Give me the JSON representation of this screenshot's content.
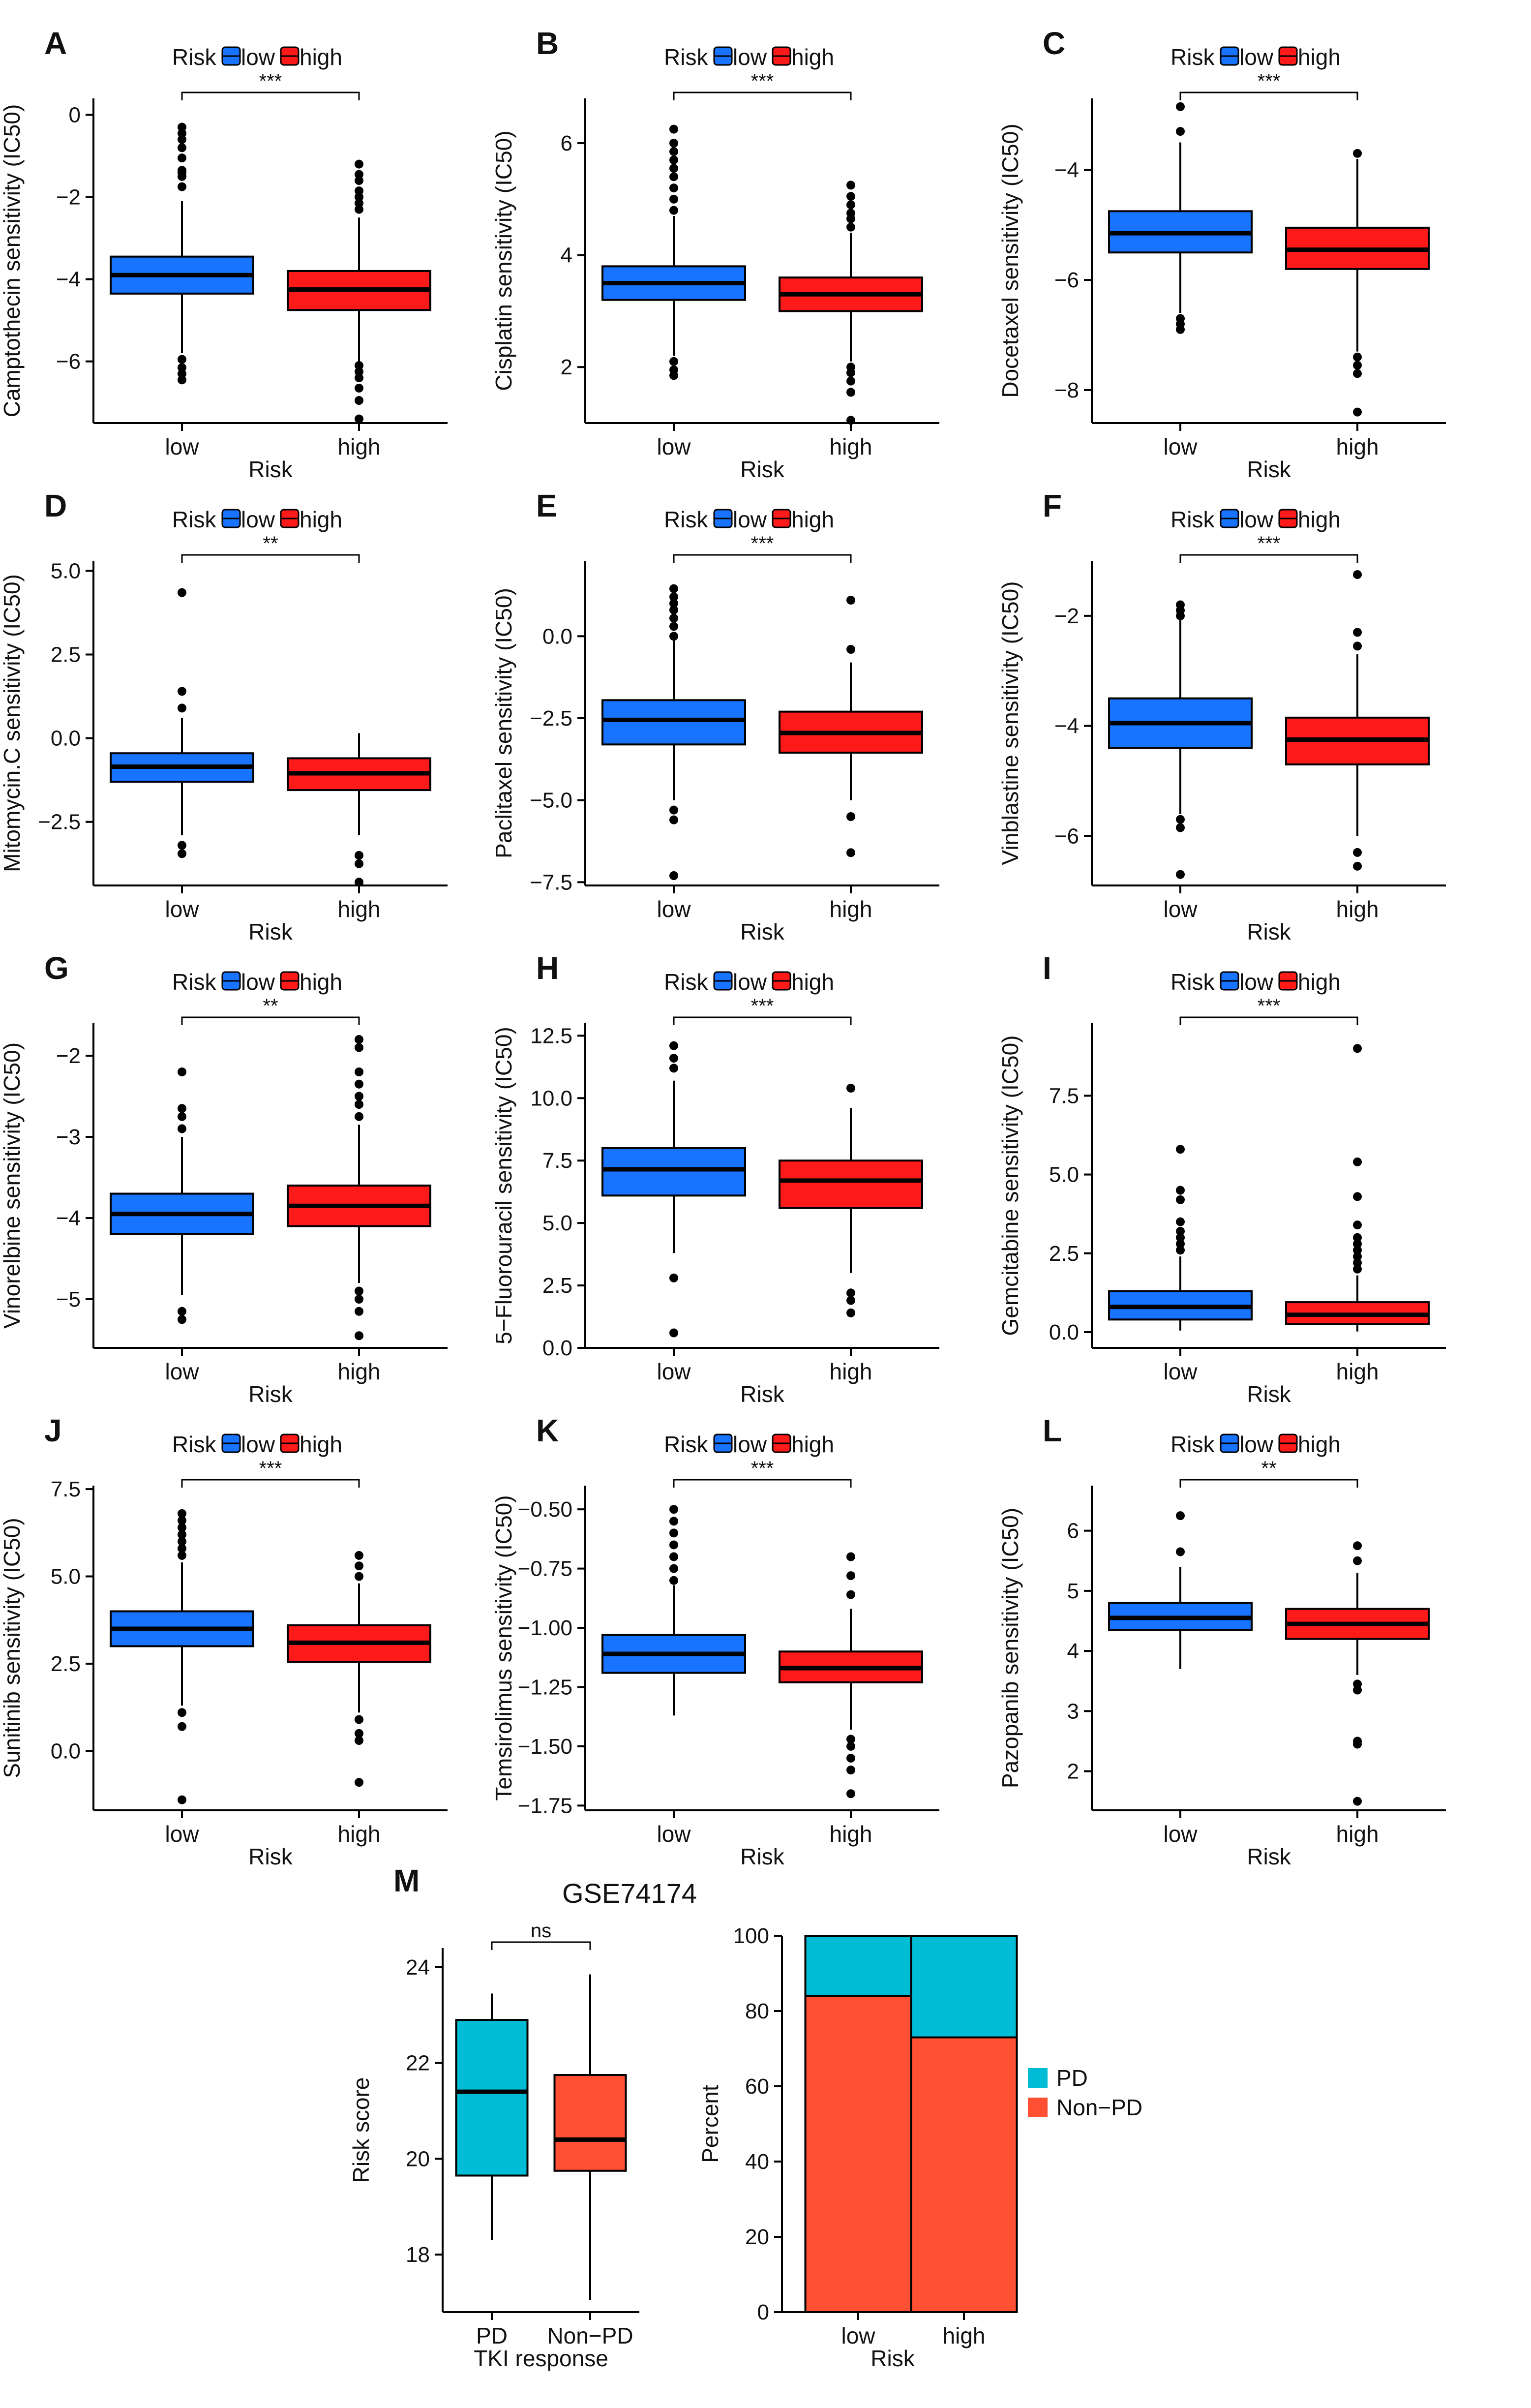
{
  "figure": {
    "gse_title": "GSE74174"
  },
  "colors": {
    "low": "#1874ff",
    "high": "#ff1a1a",
    "pd": "#00bcd4",
    "nonpd": "#ff5033",
    "axis": "#000000"
  },
  "chart_data": [
    {
      "panel": "A",
      "type": "boxplot",
      "ylabel": "Camptothecin sensitivity (IC50)",
      "xlabel": "Risk",
      "legend_title": "Risk",
      "legend_labels": [
        "low",
        "high"
      ],
      "categories": [
        "low",
        "high"
      ],
      "significance": "***",
      "ylim": [
        -7.5,
        0.4
      ],
      "yticks": [
        0,
        -2,
        -4,
        -6
      ],
      "ytick_labels": [
        "0",
        "−2",
        "−4",
        "−6"
      ],
      "boxes": [
        {
          "group": "low",
          "whisker_low": -5.8,
          "q1": -4.35,
          "median": -3.9,
          "q3": -3.45,
          "whisker_high": -2.1,
          "outliers": [
            -0.3,
            -0.45,
            -0.6,
            -0.8,
            -1.05,
            -1.35,
            -1.4,
            -1.5,
            -1.75,
            -5.95,
            -6.15,
            -6.3,
            -6.45
          ]
        },
        {
          "group": "high",
          "whisker_low": -6.0,
          "q1": -4.75,
          "median": -4.25,
          "q3": -3.8,
          "whisker_high": -2.5,
          "outliers": [
            -1.2,
            -1.45,
            -1.6,
            -1.85,
            -2.0,
            -2.15,
            -2.3,
            -6.1,
            -6.25,
            -6.4,
            -6.65,
            -6.95,
            -7.4
          ]
        }
      ]
    },
    {
      "panel": "B",
      "type": "boxplot",
      "ylabel": "Cisplatin sensitivity (IC50)",
      "xlabel": "Risk",
      "legend_title": "Risk",
      "legend_labels": [
        "low",
        "high"
      ],
      "categories": [
        "low",
        "high"
      ],
      "significance": "***",
      "ylim": [
        1.0,
        6.8
      ],
      "yticks": [
        2,
        4,
        6
      ],
      "ytick_labels": [
        "2",
        "4",
        "6"
      ],
      "boxes": [
        {
          "group": "low",
          "whisker_low": 2.2,
          "q1": 3.2,
          "median": 3.5,
          "q3": 3.8,
          "whisker_high": 4.7,
          "outliers": [
            4.8,
            5.0,
            5.2,
            5.4,
            5.55,
            5.7,
            5.85,
            6.0,
            6.25,
            2.1,
            1.95,
            1.85
          ]
        },
        {
          "group": "high",
          "whisker_low": 2.1,
          "q1": 3.0,
          "median": 3.3,
          "q3": 3.6,
          "whisker_high": 4.4,
          "outliers": [
            4.5,
            4.65,
            4.75,
            4.9,
            5.05,
            5.25,
            2.0,
            1.9,
            1.75,
            1.55,
            1.05
          ]
        }
      ]
    },
    {
      "panel": "C",
      "type": "boxplot",
      "ylabel": "Docetaxel sensitivity (IC50)",
      "xlabel": "Risk",
      "legend_title": "Risk",
      "legend_labels": [
        "low",
        "high"
      ],
      "categories": [
        "low",
        "high"
      ],
      "significance": "***",
      "ylim": [
        -8.6,
        -2.7
      ],
      "yticks": [
        -4,
        -6,
        -8
      ],
      "ytick_labels": [
        "−4",
        "−6",
        "−8"
      ],
      "boxes": [
        {
          "group": "low",
          "whisker_low": -6.6,
          "q1": -5.5,
          "median": -5.15,
          "q3": -4.75,
          "whisker_high": -3.5,
          "outliers": [
            -2.85,
            -3.3,
            -6.7,
            -6.8,
            -6.9
          ]
        },
        {
          "group": "high",
          "whisker_low": -7.3,
          "q1": -5.8,
          "median": -5.45,
          "q3": -5.05,
          "whisker_high": -3.8,
          "outliers": [
            -3.7,
            -7.4,
            -7.55,
            -7.7,
            -8.4
          ]
        }
      ]
    },
    {
      "panel": "D",
      "type": "boxplot",
      "ylabel": "Mitomycin.C sensitivity (IC50)",
      "xlabel": "Risk",
      "legend_title": "Risk",
      "legend_labels": [
        "low",
        "high"
      ],
      "categories": [
        "low",
        "high"
      ],
      "significance": "**",
      "ylim": [
        -4.4,
        5.3
      ],
      "yticks": [
        5.0,
        2.5,
        0.0,
        -2.5
      ],
      "ytick_labels": [
        "5.0",
        "2.5",
        "0.0",
        "−2.5"
      ],
      "boxes": [
        {
          "group": "low",
          "whisker_low": -2.9,
          "q1": -1.3,
          "median": -0.85,
          "q3": -0.45,
          "whisker_high": 0.6,
          "outliers": [
            4.35,
            1.4,
            0.9,
            -3.2,
            -3.45
          ]
        },
        {
          "group": "high",
          "whisker_low": -2.9,
          "q1": -1.55,
          "median": -1.05,
          "q3": -0.6,
          "whisker_high": 0.15,
          "outliers": [
            -3.5,
            -3.75,
            -4.3
          ]
        }
      ]
    },
    {
      "panel": "E",
      "type": "boxplot",
      "ylabel": "Paclitaxel sensitivity (IC50)",
      "xlabel": "Risk",
      "legend_title": "Risk",
      "legend_labels": [
        "low",
        "high"
      ],
      "categories": [
        "low",
        "high"
      ],
      "significance": "***",
      "ylim": [
        -7.6,
        2.3
      ],
      "yticks": [
        0.0,
        -2.5,
        -5.0,
        -7.5
      ],
      "ytick_labels": [
        "0.0",
        "−2.5",
        "−5.0",
        "−7.5"
      ],
      "boxes": [
        {
          "group": "low",
          "whisker_low": -5.0,
          "q1": -3.3,
          "median": -2.55,
          "q3": -1.95,
          "whisker_high": -0.1,
          "outliers": [
            0.0,
            0.3,
            0.55,
            0.8,
            1.0,
            1.2,
            1.45,
            -5.3,
            -5.6,
            -7.3
          ]
        },
        {
          "group": "high",
          "whisker_low": -5.0,
          "q1": -3.55,
          "median": -2.95,
          "q3": -2.3,
          "whisker_high": -0.8,
          "outliers": [
            1.1,
            -0.4,
            -5.5,
            -6.6
          ]
        }
      ]
    },
    {
      "panel": "F",
      "type": "boxplot",
      "ylabel": "Vinblastine sensitivity (IC50)",
      "xlabel": "Risk",
      "legend_title": "Risk",
      "legend_labels": [
        "low",
        "high"
      ],
      "categories": [
        "low",
        "high"
      ],
      "significance": "***",
      "ylim": [
        -6.9,
        -1.0
      ],
      "yticks": [
        -2,
        -4,
        -6
      ],
      "ytick_labels": [
        "−2",
        "−4",
        "−6"
      ],
      "boxes": [
        {
          "group": "low",
          "whisker_low": -5.6,
          "q1": -4.4,
          "median": -3.95,
          "q3": -3.5,
          "whisker_high": -2.05,
          "outliers": [
            -1.8,
            -1.9,
            -2.0,
            -5.7,
            -5.85,
            -6.7
          ]
        },
        {
          "group": "high",
          "whisker_low": -6.0,
          "q1": -4.7,
          "median": -4.25,
          "q3": -3.85,
          "whisker_high": -2.7,
          "outliers": [
            -1.25,
            -2.3,
            -2.55,
            -6.3,
            -6.55
          ]
        }
      ]
    },
    {
      "panel": "G",
      "type": "boxplot",
      "ylabel": "Vinorelbine sensitivity (IC50)",
      "xlabel": "Risk",
      "legend_title": "Risk",
      "legend_labels": [
        "low",
        "high"
      ],
      "categories": [
        "low",
        "high"
      ],
      "significance": "**",
      "ylim": [
        -5.6,
        -1.6
      ],
      "yticks": [
        -2,
        -3,
        -4,
        -5
      ],
      "ytick_labels": [
        "−2",
        "−3",
        "−4",
        "−5"
      ],
      "boxes": [
        {
          "group": "low",
          "whisker_low": -4.95,
          "q1": -4.2,
          "median": -3.95,
          "q3": -3.7,
          "whisker_high": -3.0,
          "outliers": [
            -2.2,
            -2.65,
            -2.75,
            -2.9,
            -5.15,
            -5.25
          ]
        },
        {
          "group": "high",
          "whisker_low": -4.8,
          "q1": -4.1,
          "median": -3.85,
          "q3": -3.6,
          "whisker_high": -2.85,
          "outliers": [
            -1.8,
            -1.9,
            -2.2,
            -2.35,
            -2.5,
            -2.6,
            -2.75,
            -4.9,
            -5.0,
            -5.15,
            -5.45
          ]
        }
      ]
    },
    {
      "panel": "H",
      "type": "boxplot",
      "ylabel": "5−Fluorouracil sensitivity (IC50)",
      "xlabel": "Risk",
      "legend_title": "Risk",
      "legend_labels": [
        "low",
        "high"
      ],
      "categories": [
        "low",
        "high"
      ],
      "significance": "***",
      "ylim": [
        0,
        13.0
      ],
      "yticks": [
        0.0,
        2.5,
        5.0,
        7.5,
        10.0,
        12.5
      ],
      "ytick_labels": [
        "0.0",
        "2.5",
        "5.0",
        "7.5",
        "10.0",
        "12.5"
      ],
      "boxes": [
        {
          "group": "low",
          "whisker_low": 3.8,
          "q1": 6.1,
          "median": 7.15,
          "q3": 8.0,
          "whisker_high": 10.7,
          "outliers": [
            2.8,
            0.6,
            11.2,
            11.6,
            12.1
          ]
        },
        {
          "group": "high",
          "whisker_low": 3.0,
          "q1": 5.6,
          "median": 6.7,
          "q3": 7.5,
          "whisker_high": 9.6,
          "outliers": [
            10.4,
            2.2,
            1.9,
            1.4
          ]
        }
      ]
    },
    {
      "panel": "I",
      "type": "boxplot",
      "ylabel": "Gemcitabine sensitivity (IC50)",
      "xlabel": "Risk",
      "legend_title": "Risk",
      "legend_labels": [
        "low",
        "high"
      ],
      "categories": [
        "low",
        "high"
      ],
      "significance": "***",
      "ylim": [
        -0.5,
        9.8
      ],
      "yticks": [
        0.0,
        2.5,
        5.0,
        7.5
      ],
      "ytick_labels": [
        "0.0",
        "2.5",
        "5.0",
        "7.5"
      ],
      "boxes": [
        {
          "group": "low",
          "whisker_low": 0.05,
          "q1": 0.4,
          "median": 0.8,
          "q3": 1.3,
          "whisker_high": 2.4,
          "outliers": [
            2.6,
            2.8,
            3.0,
            3.2,
            3.5,
            4.2,
            4.5,
            5.8
          ]
        },
        {
          "group": "high",
          "whisker_low": 0.02,
          "q1": 0.25,
          "median": 0.55,
          "q3": 0.95,
          "whisker_high": 1.8,
          "outliers": [
            2.0,
            2.2,
            2.4,
            2.6,
            2.8,
            3.0,
            3.4,
            4.3,
            5.4,
            9.0
          ]
        }
      ]
    },
    {
      "panel": "J",
      "type": "boxplot",
      "ylabel": "Sunitinib sensitivity (IC50)",
      "xlabel": "Risk",
      "legend_title": "Risk",
      "legend_labels": [
        "low",
        "high"
      ],
      "categories": [
        "low",
        "high"
      ],
      "significance": "***",
      "ylim": [
        -1.7,
        7.6
      ],
      "yticks": [
        7.5,
        5.0,
        2.5,
        0.0
      ],
      "ytick_labels": [
        "7.5",
        "5.0",
        "2.5",
        "0.0"
      ],
      "boxes": [
        {
          "group": "low",
          "whisker_low": 1.3,
          "q1": 3.0,
          "median": 3.5,
          "q3": 4.0,
          "whisker_high": 5.4,
          "outliers": [
            5.6,
            5.8,
            6.0,
            6.2,
            6.4,
            6.6,
            6.8,
            1.1,
            0.7,
            -1.4
          ]
        },
        {
          "group": "high",
          "whisker_low": 1.1,
          "q1": 2.55,
          "median": 3.1,
          "q3": 3.6,
          "whisker_high": 4.8,
          "outliers": [
            5.0,
            5.3,
            5.6,
            0.9,
            0.5,
            0.3,
            -0.9
          ]
        }
      ]
    },
    {
      "panel": "K",
      "type": "boxplot",
      "ylabel": "Temsirolimus sensitivity (IC50)",
      "xlabel": "Risk",
      "legend_title": "Risk",
      "legend_labels": [
        "low",
        "high"
      ],
      "categories": [
        "low",
        "high"
      ],
      "significance": "***",
      "ylim": [
        -1.77,
        -0.4
      ],
      "yticks": [
        -0.5,
        -0.75,
        -1.0,
        -1.25,
        -1.5,
        -1.75
      ],
      "ytick_labels": [
        "−0.50",
        "−0.75",
        "−1.00",
        "−1.25",
        "−1.50",
        "−1.75"
      ],
      "boxes": [
        {
          "group": "low",
          "whisker_low": -1.37,
          "q1": -1.19,
          "median": -1.11,
          "q3": -1.03,
          "whisker_high": -0.82,
          "outliers": [
            -0.5,
            -0.55,
            -0.6,
            -0.65,
            -0.7,
            -0.75,
            -0.8
          ]
        },
        {
          "group": "high",
          "whisker_low": -1.43,
          "q1": -1.23,
          "median": -1.17,
          "q3": -1.1,
          "whisker_high": -0.92,
          "outliers": [
            -0.7,
            -0.78,
            -0.86,
            -1.47,
            -1.5,
            -1.55,
            -1.6,
            -1.7
          ]
        }
      ]
    },
    {
      "panel": "L",
      "type": "boxplot",
      "ylabel": "Pazopanib sensitivity (IC50)",
      "xlabel": "Risk",
      "legend_title": "Risk",
      "legend_labels": [
        "low",
        "high"
      ],
      "categories": [
        "low",
        "high"
      ],
      "significance": "**",
      "ylim": [
        1.35,
        6.75
      ],
      "yticks": [
        2,
        3,
        4,
        5,
        6
      ],
      "ytick_labels": [
        "2",
        "3",
        "4",
        "5",
        "6"
      ],
      "boxes": [
        {
          "group": "low",
          "whisker_low": 3.7,
          "q1": 4.35,
          "median": 4.55,
          "q3": 4.8,
          "whisker_high": 5.4,
          "outliers": [
            6.25,
            5.65
          ]
        },
        {
          "group": "high",
          "whisker_low": 3.6,
          "q1": 4.2,
          "median": 4.45,
          "q3": 4.7,
          "whisker_high": 5.3,
          "outliers": [
            5.75,
            5.5,
            3.45,
            3.35,
            2.5,
            2.45,
            1.5
          ]
        }
      ]
    },
    {
      "panel": "M",
      "type": "boxplot",
      "ylabel": "Risk score",
      "xlabel": "TKI response",
      "categories": [
        "PD",
        "Non−PD"
      ],
      "significance": "ns",
      "ylim": [
        16.8,
        24.4
      ],
      "yticks": [
        18,
        20,
        22,
        24
      ],
      "ytick_labels": [
        "18",
        "20",
        "22",
        "24"
      ],
      "boxes": [
        {
          "group": "PD",
          "whisker_low": 18.3,
          "q1": 19.65,
          "median": 21.4,
          "q3": 22.9,
          "whisker_high": 23.45,
          "outliers": []
        },
        {
          "group": "Non−PD",
          "whisker_low": 17.05,
          "q1": 19.75,
          "median": 20.4,
          "q3": 21.75,
          "whisker_high": 23.85,
          "outliers": []
        }
      ]
    },
    {
      "panel": "M",
      "type": "bar",
      "stacked": true,
      "ylabel": "Percent",
      "xlabel": "Risk",
      "categories": [
        "low",
        "high"
      ],
      "ylim": [
        0,
        100
      ],
      "yticks": [
        0,
        20,
        40,
        60,
        80,
        100
      ],
      "ytick_labels": [
        "0",
        "20",
        "40",
        "60",
        "80",
        "100"
      ],
      "series": [
        {
          "name": "Non−PD",
          "values": [
            84,
            73
          ]
        },
        {
          "name": "PD",
          "values": [
            16,
            27
          ]
        }
      ],
      "legend": [
        "PD",
        "Non−PD"
      ]
    }
  ]
}
